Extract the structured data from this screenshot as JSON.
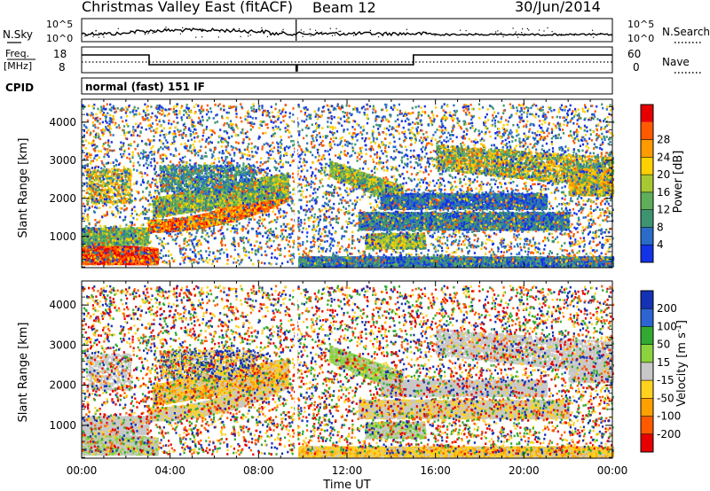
{
  "header": {
    "station": "Christmas Valley East (fitACF)",
    "beam": "Beam 12",
    "date": "30/Jun/2014"
  },
  "noise_panel": {
    "left_label": "N.Sky",
    "right_label": "N.Search",
    "left_ticks": [
      "10^5",
      "10^0"
    ],
    "right_ticks": [
      "10^5",
      "10^0"
    ]
  },
  "freq_panel": {
    "left_label_1": "Freq.",
    "left_label_2": "[MHz]",
    "right_label": "Nave",
    "left_ticks": [
      "18",
      "8"
    ],
    "right_ticks": [
      "60",
      "0"
    ]
  },
  "cpid": {
    "label": "CPID",
    "mode": "normal (fast) 151 IF"
  },
  "x_axis": {
    "title": "Time UT",
    "tick_labels": [
      "00:00",
      "04:00",
      "08:00",
      "12:00",
      "16:00",
      "20:00",
      "00:00"
    ]
  },
  "chart_data": [
    {
      "type": "heatmap",
      "title": "Power",
      "ylabel": "Slant Range [km]",
      "xlabel": "Time UT",
      "ylim": [
        180,
        4600
      ],
      "yticks": [
        "1000",
        "2000",
        "3000",
        "4000"
      ],
      "colorbar": {
        "label": "Power [dB]",
        "ticks": [
          "4",
          "8",
          "12",
          "16",
          "20",
          "24",
          "28"
        ],
        "colors": [
          "#1432e6",
          "#2a6cc8",
          "#3e9470",
          "#5fae5a",
          "#a8c832",
          "#ffd000",
          "#ff9a00",
          "#ff5a00",
          "#e60000"
        ]
      }
    },
    {
      "type": "heatmap",
      "title": "Velocity",
      "ylabel": "Slant Range [km]",
      "xlabel": "Time UT",
      "ylim": [
        180,
        4600
      ],
      "yticks": [
        "1000",
        "2000",
        "3000",
        "4000"
      ],
      "colorbar": {
        "label": "Velocity [m s",
        "label_sup": "-1",
        "label_end": "]",
        "ticks": [
          "200",
          "100",
          "50",
          "15",
          "-15",
          "-50",
          "-100",
          "-200"
        ],
        "colors": [
          "#1432b4",
          "#2c64d2",
          "#32aa32",
          "#8cd23c",
          "#c8c8c8",
          "#ffd21e",
          "#ffa000",
          "#ff5a00",
          "#e60000"
        ]
      }
    }
  ]
}
